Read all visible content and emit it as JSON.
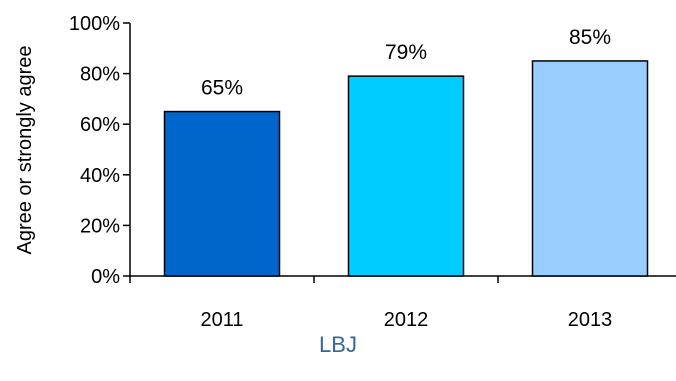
{
  "chart_data": {
    "type": "bar",
    "categories": [
      "2011",
      "2012",
      "2013"
    ],
    "values": [
      65,
      79,
      85
    ],
    "data_labels": [
      "65%",
      "79%",
      "85%"
    ],
    "bar_colors": [
      "#0066CC",
      "#00CCFF",
      "#99CCFF"
    ],
    "ylabel": "Agree or strongly agree",
    "xlabel": "",
    "ylim": [
      0,
      100
    ],
    "y_ticks": [
      0,
      20,
      40,
      60,
      80,
      100
    ],
    "y_tick_labels": [
      "0%",
      "20%",
      "40%",
      "60%",
      "80%",
      "100%"
    ],
    "grid": false,
    "legend": "none"
  },
  "footer": {
    "label": "LBJ",
    "color": "#336699"
  }
}
